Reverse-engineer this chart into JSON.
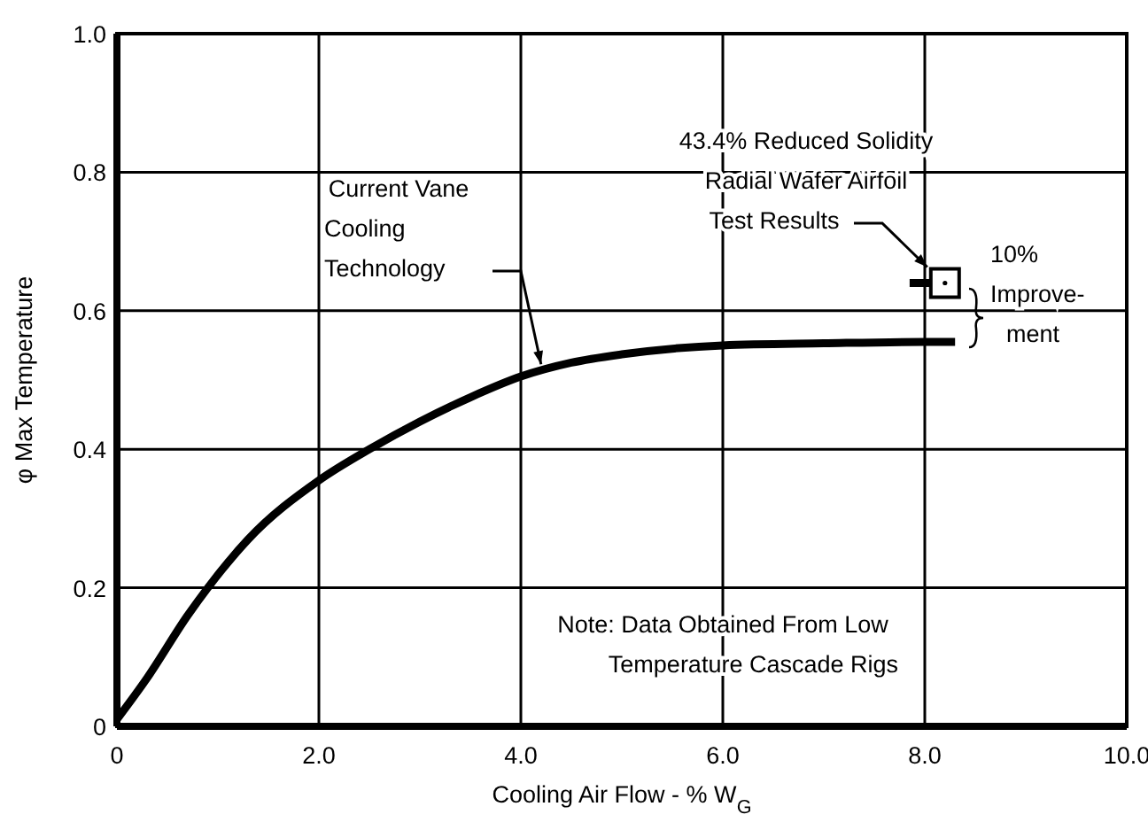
{
  "chart_data": {
    "type": "line",
    "xlabel": "Cooling Air Flow - % W$_{G}$",
    "ylabel": "φ Max Temperature",
    "xlim": [
      0,
      10
    ],
    "ylim": [
      0,
      1
    ],
    "xticks": [
      {
        "value": 0,
        "label": "0"
      },
      {
        "value": 2,
        "label": "2.0"
      },
      {
        "value": 4,
        "label": "4.0"
      },
      {
        "value": 6,
        "label": "6.0"
      },
      {
        "value": 8,
        "label": "8.0"
      },
      {
        "value": 10,
        "label": "10.0"
      }
    ],
    "yticks": [
      0,
      0.2,
      0.4,
      0.6,
      0.8,
      {
        "value": 1,
        "label": "1.0"
      }
    ],
    "grid": true,
    "series": [
      {
        "color": "#000000",
        "x": [
          0,
          0.3,
          0.7,
          0.9,
          1.3,
          2.0,
          2.5,
          3.0,
          3.5,
          4.0,
          4.5,
          5.0,
          6.0,
          7.0,
          8.0,
          8.3
        ],
        "values": [
          0.01,
          0.07,
          0.16,
          0.2,
          0.27,
          0.355,
          0.4,
          0.44,
          0.475,
          0.505,
          0.525,
          0.537,
          0.55,
          0.553,
          0.555,
          0.555
        ],
        "marker": "none"
      },
      {
        "color": "#000000",
        "x": [
          7.85,
          8.06
        ],
        "values": [
          0.64,
          0.64
        ],
        "marker": "none"
      },
      {
        "type": "scatter",
        "color": "#000000",
        "x": [
          8.2
        ],
        "values": [
          0.64
        ],
        "marker": "square"
      }
    ],
    "annotations": [
      {
        "text": "Current Vane\nCooling\nTechnology",
        "x": 4.2,
        "y": 0.515
      },
      {
        "text": "43.4% Reduced Solidity\nRadial Wafer Airfoil\nTest Results",
        "x": 8.2,
        "y": 0.64
      },
      "10%\nImprove-\nment",
      "Note: Data Obtained From Low\nTemperature Cascade Rigs"
    ]
  }
}
